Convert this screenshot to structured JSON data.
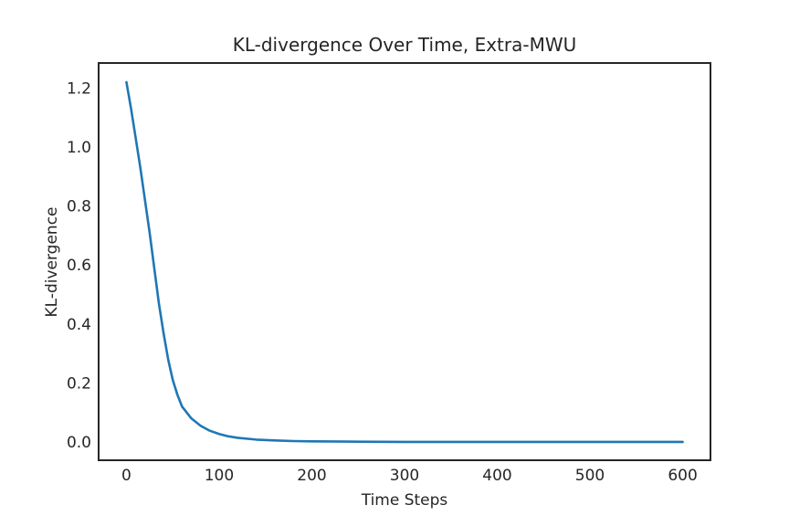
{
  "chart_data": {
    "type": "line",
    "title": "KL-divergence Over Time, Extra-MWU",
    "xlabel": "Time Steps",
    "ylabel": "KL-divergence",
    "xlim": [
      -30,
      630
    ],
    "ylim": [
      -0.062,
      1.285
    ],
    "xticks": [
      0,
      100,
      200,
      300,
      400,
      500,
      600
    ],
    "yticks": [
      0.0,
      0.2,
      0.4,
      0.6,
      0.8,
      1.0,
      1.2
    ],
    "xtick_labels": [
      "0",
      "100",
      "200",
      "300",
      "400",
      "500",
      "600"
    ],
    "ytick_labels": [
      "0.0",
      "0.2",
      "0.4",
      "0.6",
      "0.8",
      "1.0",
      "1.2"
    ],
    "grid": false,
    "series": [
      {
        "color": "#1f77b4",
        "x": [
          0,
          5,
          10,
          15,
          20,
          25,
          30,
          35,
          40,
          45,
          50,
          55,
          60,
          70,
          80,
          90,
          100,
          110,
          120,
          140,
          160,
          180,
          200,
          250,
          300,
          400,
          500,
          600
        ],
        "y": [
          1.22,
          1.13,
          1.03,
          0.93,
          0.82,
          0.71,
          0.59,
          0.47,
          0.37,
          0.28,
          0.21,
          0.16,
          0.12,
          0.08,
          0.055,
          0.038,
          0.027,
          0.019,
          0.014,
          0.008,
          0.005,
          0.003,
          0.002,
          0.001,
          0.0,
          0.0,
          0.0,
          0.0
        ]
      }
    ]
  }
}
